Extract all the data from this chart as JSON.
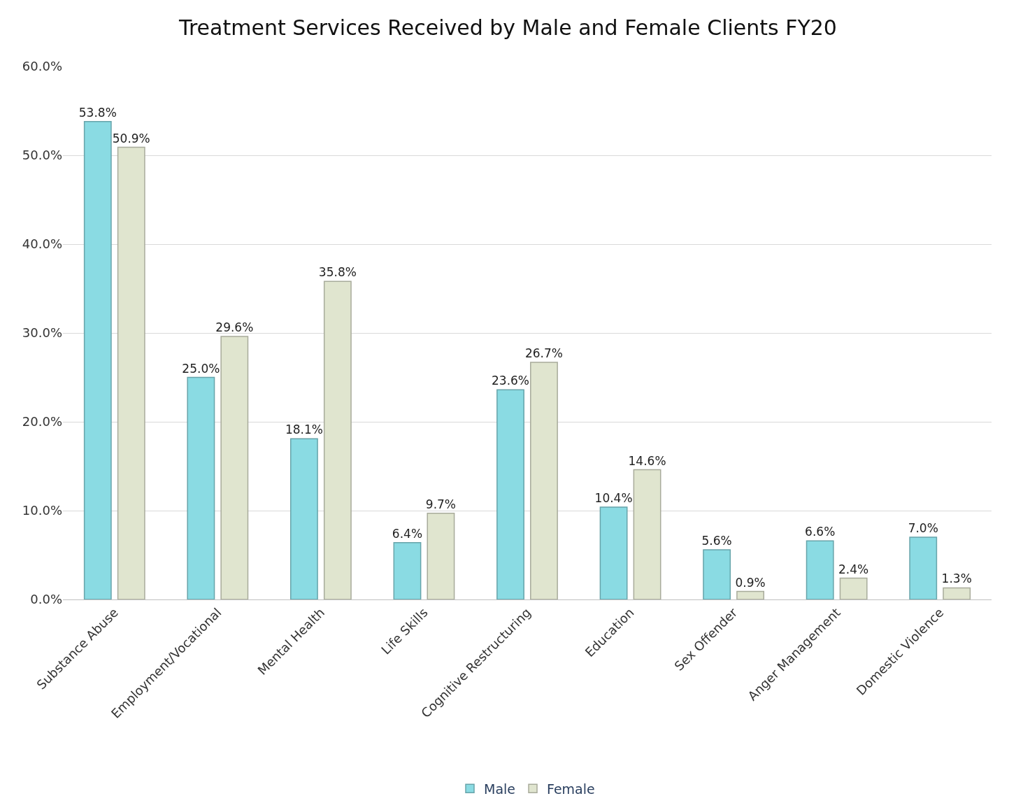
{
  "chart_data": {
    "type": "bar",
    "title": "Treatment Services Received by Male and Female Clients FY20",
    "categories": [
      "Substance Abuse",
      "Employment/Vocational",
      "Mental Health",
      "Life Skills",
      "Cognitive Restructuring",
      "Education",
      "Sex Offender",
      "Anger Management",
      "Domestic Violence"
    ],
    "series": [
      {
        "name": "Male",
        "color": "#8adbe3",
        "values": [
          53.8,
          25.0,
          18.1,
          6.4,
          23.6,
          10.4,
          5.6,
          6.6,
          7.0
        ],
        "value_labels": [
          "53.8%",
          "25.0%",
          "18.1%",
          "6.4%",
          "23.6%",
          "10.4%",
          "5.6%",
          "6.6%",
          "7.0%"
        ]
      },
      {
        "name": "Female",
        "color": "#e0e5cf",
        "values": [
          50.9,
          29.6,
          35.8,
          9.7,
          26.7,
          14.6,
          0.9,
          2.4,
          1.3
        ],
        "value_labels": [
          "50.9%",
          "29.6%",
          "35.8%",
          "9.7%",
          "26.7%",
          "14.6%",
          "0.9%",
          "2.4%",
          "1.3%"
        ]
      }
    ],
    "ylim": [
      0,
      60
    ],
    "yticks": [
      {
        "value": 0,
        "label": "0.0%"
      },
      {
        "value": 10,
        "label": "10.0%"
      },
      {
        "value": 20,
        "label": "20.0%"
      },
      {
        "value": 30,
        "label": "30.0%"
      },
      {
        "value": 40,
        "label": "40.0%"
      },
      {
        "value": 50,
        "label": "50.0%"
      },
      {
        "value": 60,
        "label": "60.0%"
      }
    ],
    "grid": "y",
    "legend": "bottom"
  }
}
